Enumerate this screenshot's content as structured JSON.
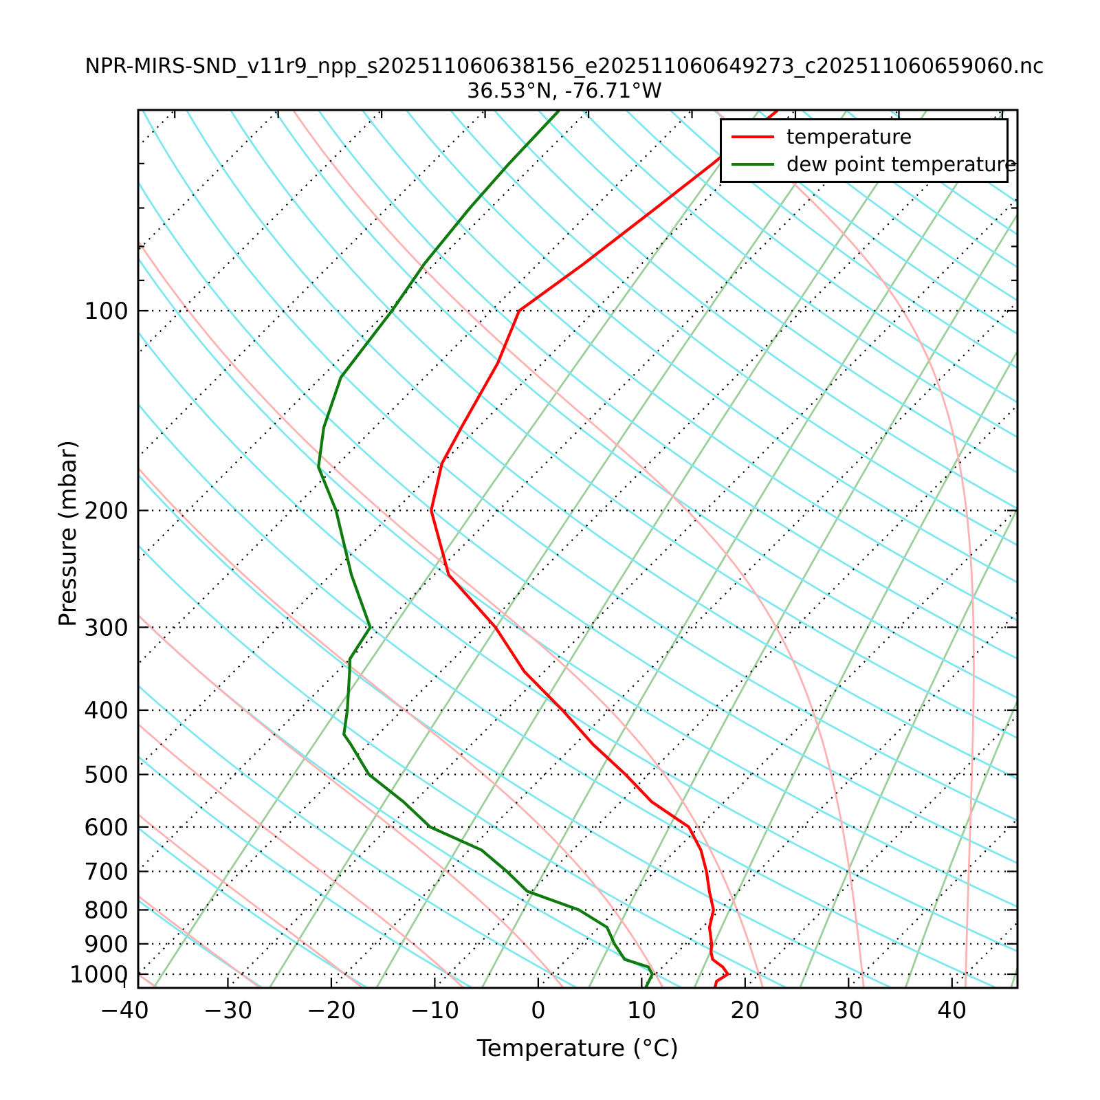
{
  "figure": {
    "title_line1": "NPR-MIRS-SND_v11r9_npp_s202511060638156_e202511060649273_c202511060659060.nc",
    "title_line2": "36.53°N, -76.71°W"
  },
  "axes": {
    "xlabel": "Temperature (°C)",
    "ylabel": "Pressure (mbar)"
  },
  "legend": {
    "position": "upper right",
    "items": [
      {
        "label": "temperature",
        "color": "#ff0000"
      },
      {
        "label": "dew point temperature",
        "color": "#0f7b0f"
      }
    ]
  },
  "chart_data": {
    "type": "line",
    "variant": "skew-t-log-p-sounding",
    "title": "NPR-MIRS-SND_v11r9_npp_s202511060638156_e202511060649273_c202511060659060.nc",
    "subtitle": "36.53°N, -76.71°W",
    "xlabel": "Temperature (°C)",
    "ylabel": "Pressure (mbar)",
    "x_axis": {
      "min": -40,
      "max": 45,
      "major_ticks": [
        -40,
        -30,
        -20,
        -10,
        0,
        10,
        20,
        30,
        40
      ],
      "tick_labels": [
        "−40",
        "−30",
        "−20",
        "−10",
        "0",
        "10",
        "20",
        "30",
        "40"
      ]
    },
    "y_axis": {
      "scale": "log",
      "top_mbar": 50,
      "bottom_mbar": 1050,
      "major_ticks": [
        100,
        200,
        300,
        400,
        500,
        600,
        700,
        800,
        900,
        1000
      ],
      "tick_labels": [
        "100",
        "200",
        "300",
        "400",
        "500",
        "600",
        "700",
        "800",
        "900",
        "1000"
      ],
      "minor_ticks": [
        60,
        70,
        80,
        90
      ]
    },
    "skew_deg_per_decade": 64.13,
    "grid": {
      "isobars_mbar": [
        100,
        200,
        300,
        400,
        500,
        600,
        700,
        800,
        900,
        1000
      ],
      "isotherms_c": {
        "start": -120,
        "end": 40,
        "step": 10,
        "style": "dotted"
      },
      "dry_adiabats_theta_c": {
        "start": -40,
        "end": 250,
        "step": 10
      },
      "moist_adiabats_tw_c": {
        "start": -40,
        "end": 40,
        "step": 10
      },
      "mixing_ratio_g_kg": [
        0.15,
        0.44,
        1.08,
        2.43,
        5.17,
        10.33,
        19.73,
        36.33,
        65.4
      ]
    },
    "colors": {
      "temperature": "#ff0000",
      "dew_point": "#0f7b0f",
      "dry_adiabat": "#7ee7f0",
      "moist_adiabat": "#ffb2b2",
      "mixing_ratio": "#9ccf9c",
      "isoline": "#000000"
    },
    "legend_entries": [
      "temperature",
      "dew point temperature"
    ],
    "series": [
      {
        "name": "temperature",
        "color": "#ff0000",
        "points_p_mbar_t_c": [
          [
            1050,
            17.1
          ],
          [
            1025,
            16.6
          ],
          [
            1000,
            17.0
          ],
          [
            975,
            15.8
          ],
          [
            950,
            14.1
          ],
          [
            925,
            13.2
          ],
          [
            900,
            12.5
          ],
          [
            850,
            10.7
          ],
          [
            800,
            9.4
          ],
          [
            750,
            7.2
          ],
          [
            700,
            5.0
          ],
          [
            650,
            2.4
          ],
          [
            600,
            -1.0
          ],
          [
            550,
            -7.0
          ],
          [
            500,
            -12.2
          ],
          [
            450,
            -18.3
          ],
          [
            400,
            -24.5
          ],
          [
            350,
            -31.9
          ],
          [
            300,
            -39.0
          ],
          [
            250,
            -48.6
          ],
          [
            200,
            -56.5
          ],
          [
            170,
            -60.0
          ],
          [
            150,
            -61.6
          ],
          [
            120,
            -64.3
          ],
          [
            100,
            -67.3
          ],
          [
            85,
            -65.6
          ],
          [
            70,
            -64.0
          ],
          [
            60,
            -62.8
          ],
          [
            50,
            -61.7
          ]
        ]
      },
      {
        "name": "dew point temperature",
        "color": "#0f7b0f",
        "points_p_mbar_t_c": [
          [
            1050,
            10.4
          ],
          [
            1000,
            9.7
          ],
          [
            975,
            8.6
          ],
          [
            950,
            5.6
          ],
          [
            900,
            3.1
          ],
          [
            850,
            0.8
          ],
          [
            800,
            -3.6
          ],
          [
            750,
            -10.4
          ],
          [
            700,
            -14.3
          ],
          [
            650,
            -18.8
          ],
          [
            600,
            -26.0
          ],
          [
            550,
            -31.0
          ],
          [
            500,
            -37.0
          ],
          [
            450,
            -41.7
          ],
          [
            435,
            -43.3
          ],
          [
            400,
            -45.3
          ],
          [
            350,
            -48.8
          ],
          [
            335,
            -50.0
          ],
          [
            300,
            -51.1
          ],
          [
            250,
            -58.0
          ],
          [
            200,
            -65.7
          ],
          [
            172,
            -71.6
          ],
          [
            150,
            -74.9
          ],
          [
            126,
            -78.1
          ],
          [
            100,
            -79.6
          ],
          [
            85,
            -81.0
          ],
          [
            70,
            -82.0
          ],
          [
            60,
            -82.5
          ],
          [
            50,
            -82.8
          ]
        ]
      }
    ]
  }
}
